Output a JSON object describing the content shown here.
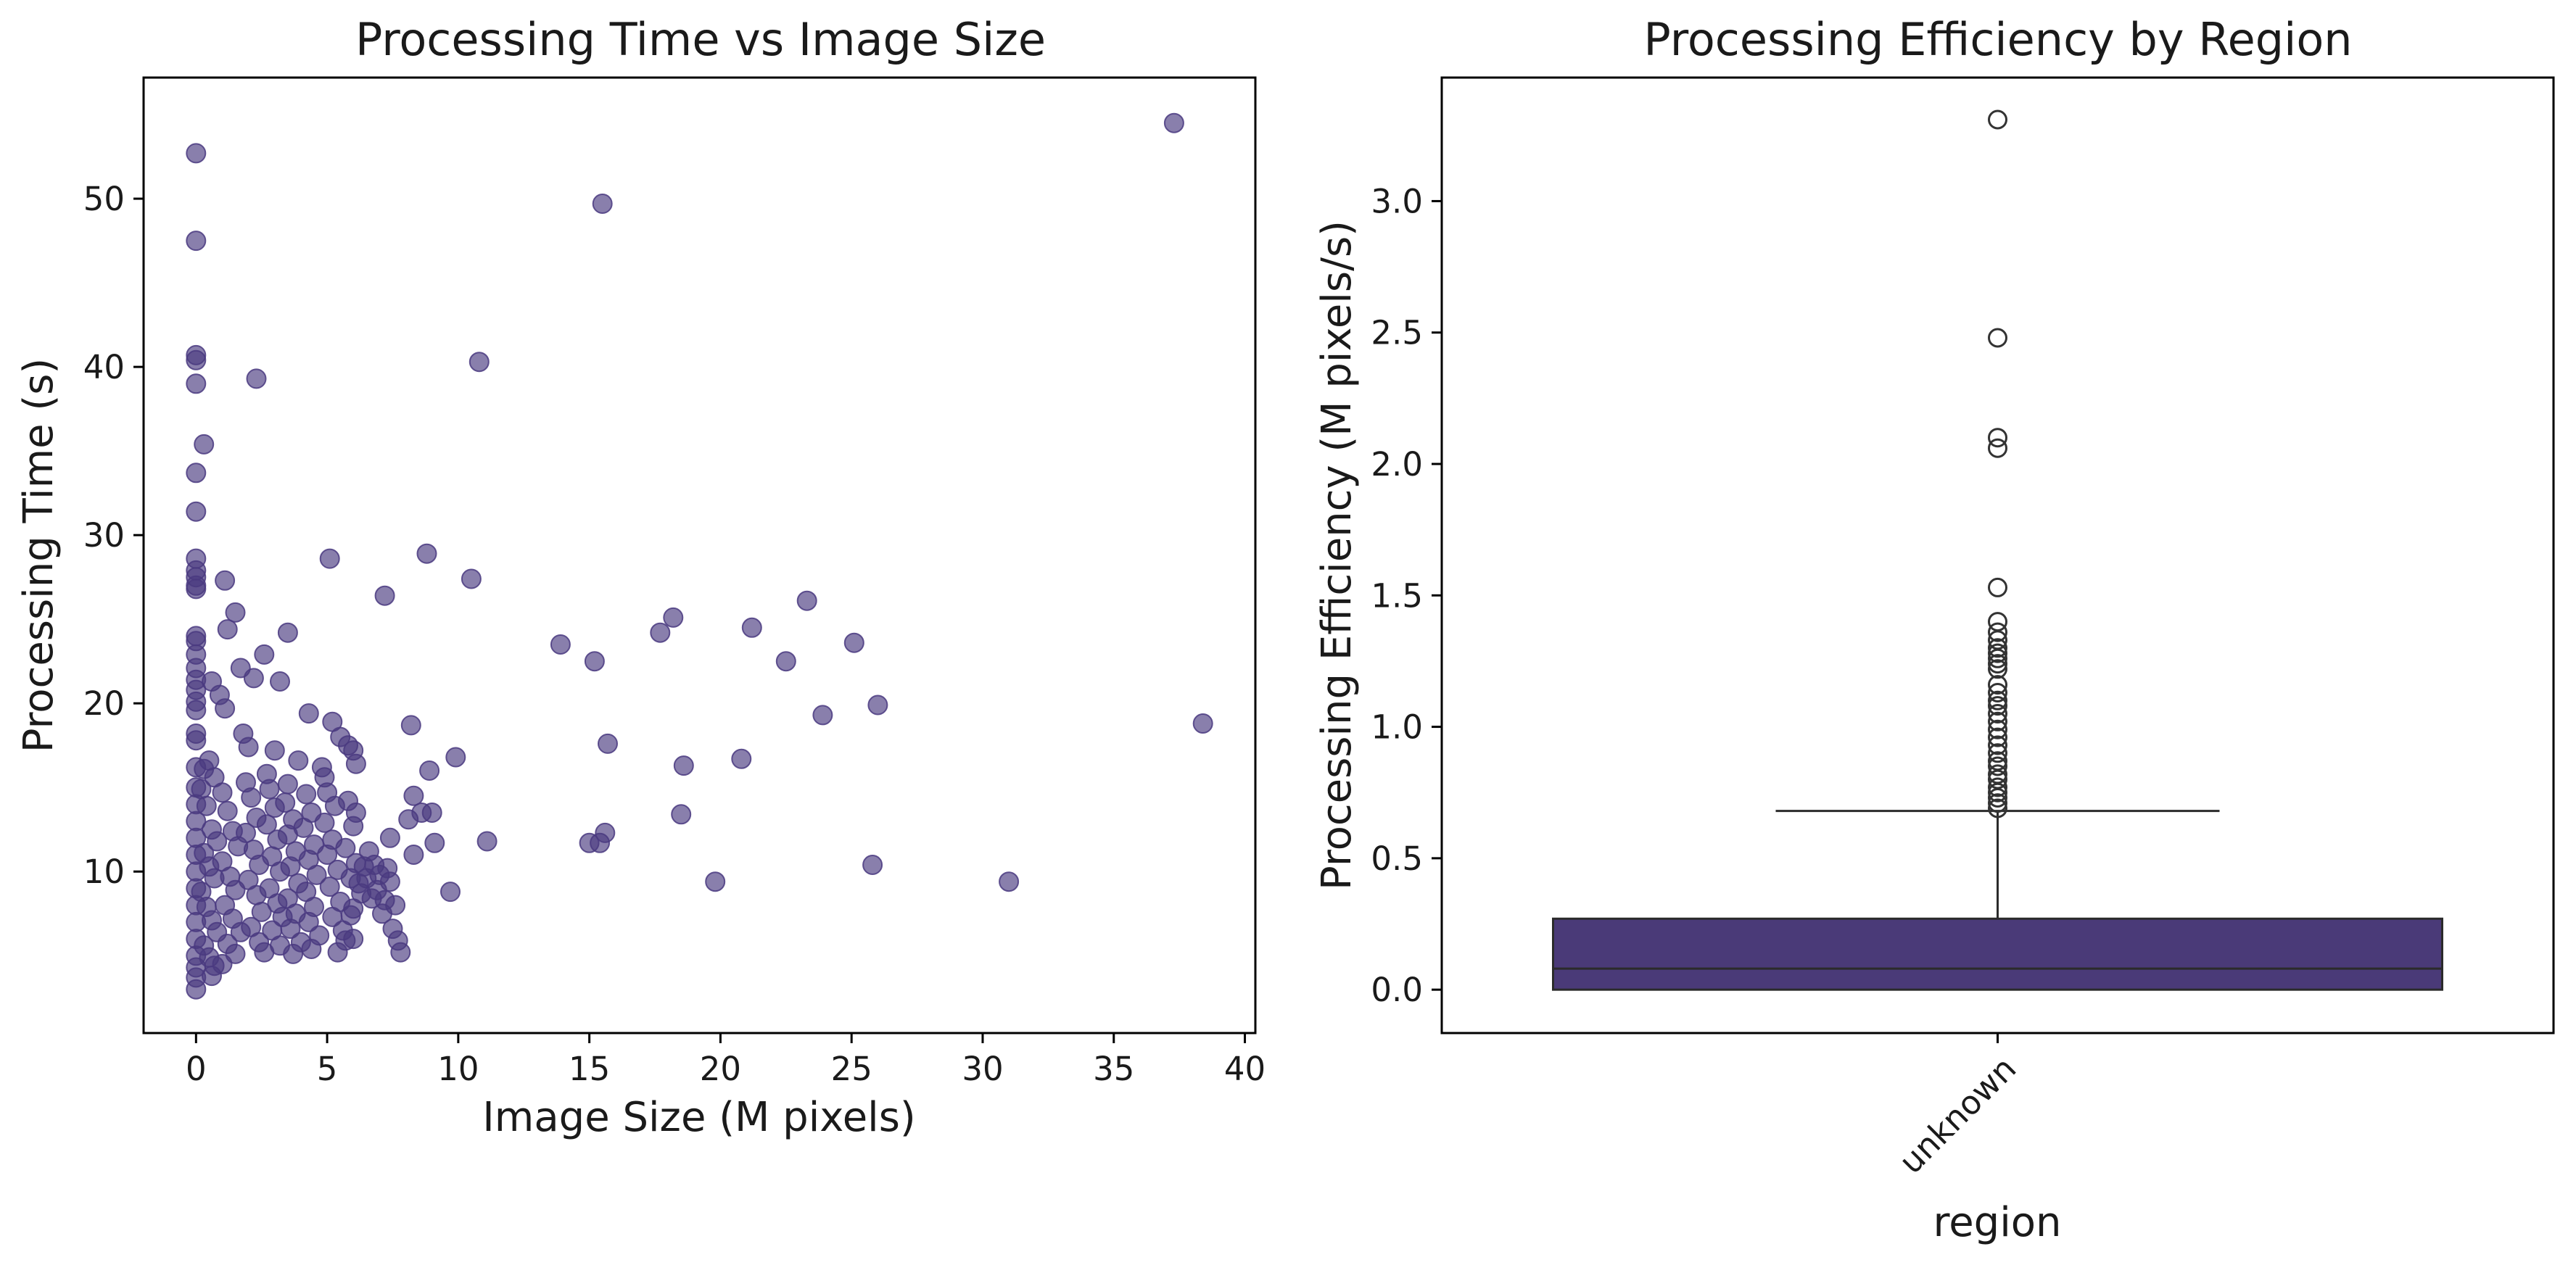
{
  "chart_data": [
    {
      "type": "scatter",
      "title": "Processing Time vs Image Size",
      "xlabel": "Image Size (M pixels)",
      "ylabel": "Processing Time (s)",
      "xlim": [
        -2,
        40.4
      ],
      "ylim": [
        0.4,
        57.2
      ],
      "xticks": [
        0,
        5,
        10,
        15,
        20,
        25,
        30,
        35,
        40
      ],
      "yticks": [
        10,
        20,
        30,
        40,
        50
      ],
      "marker_color": "#4a3a80",
      "marker_alpha": 0.65,
      "grid": false,
      "points": [
        [
          0,
          52.7
        ],
        [
          0,
          47.5
        ],
        [
          0,
          40.7
        ],
        [
          0,
          40.4
        ],
        [
          0,
          39.0
        ],
        [
          0,
          33.7
        ],
        [
          0,
          31.4
        ],
        [
          0.3,
          35.4
        ],
        [
          0,
          28.6
        ],
        [
          0,
          27.9
        ],
        [
          0,
          27.5
        ],
        [
          0,
          27.0
        ],
        [
          0,
          26.8
        ],
        [
          0,
          24.0
        ],
        [
          0,
          23.7
        ],
        [
          0,
          22.9
        ],
        [
          0,
          22.1
        ],
        [
          0,
          21.4
        ],
        [
          0,
          20.8
        ],
        [
          0,
          20.1
        ],
        [
          0,
          19.6
        ],
        [
          0,
          18.2
        ],
        [
          0,
          17.8
        ],
        [
          15.5,
          49.7
        ],
        [
          37.3,
          54.5
        ],
        [
          10.8,
          40.3
        ],
        [
          2.3,
          39.3
        ],
        [
          5.1,
          28.6
        ],
        [
          8.8,
          28.9
        ],
        [
          10.5,
          27.4
        ],
        [
          7.2,
          26.4
        ],
        [
          1.1,
          27.3
        ],
        [
          1.5,
          25.4
        ],
        [
          3.5,
          24.2
        ],
        [
          1.2,
          24.4
        ],
        [
          2.6,
          22.9
        ],
        [
          1.7,
          22.1
        ],
        [
          2.2,
          21.5
        ],
        [
          3.2,
          21.3
        ],
        [
          0.6,
          21.3
        ],
        [
          0.9,
          20.5
        ],
        [
          1.1,
          19.7
        ],
        [
          4.3,
          19.4
        ],
        [
          5.2,
          18.9
        ],
        [
          5.5,
          18.0
        ],
        [
          6.0,
          17.2
        ],
        [
          5.8,
          17.5
        ],
        [
          8.2,
          18.7
        ],
        [
          9.9,
          16.8
        ],
        [
          8.9,
          16.0
        ],
        [
          6.1,
          16.4
        ],
        [
          4.8,
          16.2
        ],
        [
          3.9,
          16.6
        ],
        [
          3.0,
          17.2
        ],
        [
          8.3,
          14.5
        ],
        [
          8.6,
          13.5
        ],
        [
          9.0,
          13.5
        ],
        [
          8.1,
          13.1
        ],
        [
          6.1,
          13.5
        ],
        [
          7.4,
          12.0
        ],
        [
          9.1,
          11.7
        ],
        [
          11.1,
          11.8
        ],
        [
          8.3,
          11.0
        ],
        [
          9.7,
          8.8
        ],
        [
          7.5,
          6.6
        ],
        [
          7.7,
          5.9
        ],
        [
          7.8,
          5.2
        ],
        [
          7.6,
          8.0
        ],
        [
          6.5,
          9.6
        ],
        [
          7.2,
          8.3
        ],
        [
          5.4,
          5.2
        ],
        [
          5.7,
          5.9
        ],
        [
          6.0,
          6.0
        ],
        [
          5.9,
          7.4
        ],
        [
          13.9,
          23.5
        ],
        [
          15.2,
          22.5
        ],
        [
          17.7,
          24.2
        ],
        [
          18.2,
          25.1
        ],
        [
          21.2,
          24.5
        ],
        [
          22.5,
          22.5
        ],
        [
          23.3,
          26.1
        ],
        [
          25.1,
          23.6
        ],
        [
          23.9,
          19.3
        ],
        [
          26.0,
          19.9
        ],
        [
          15.7,
          17.6
        ],
        [
          18.6,
          16.3
        ],
        [
          20.8,
          16.7
        ],
        [
          18.5,
          13.4
        ],
        [
          15.0,
          11.7
        ],
        [
          15.4,
          11.7
        ],
        [
          15.6,
          12.3
        ],
        [
          19.8,
          9.4
        ],
        [
          25.8,
          10.4
        ],
        [
          31.0,
          9.4
        ],
        [
          38.4,
          18.8
        ],
        [
          0,
          16.2
        ],
        [
          0,
          15.0
        ],
        [
          0,
          14.0
        ],
        [
          0,
          13.0
        ],
        [
          0,
          12.0
        ],
        [
          0,
          11.0
        ],
        [
          0,
          10.0
        ],
        [
          0,
          9.0
        ],
        [
          0,
          8.0
        ],
        [
          0,
          7.0
        ],
        [
          0,
          6.0
        ],
        [
          0,
          5.0
        ],
        [
          0,
          4.3
        ],
        [
          0,
          3.7
        ],
        [
          0,
          3.0
        ],
        [
          0.3,
          16.1
        ],
        [
          0.5,
          16.6
        ],
        [
          0.7,
          15.6
        ],
        [
          0.2,
          14.9
        ],
        [
          0.4,
          13.9
        ],
        [
          0.6,
          12.5
        ],
        [
          0.8,
          11.8
        ],
        [
          0.3,
          11.1
        ],
        [
          0.5,
          10.3
        ],
        [
          0.7,
          9.6
        ],
        [
          0.2,
          8.8
        ],
        [
          0.4,
          7.9
        ],
        [
          0.6,
          7.1
        ],
        [
          0.8,
          6.4
        ],
        [
          0.3,
          5.6
        ],
        [
          0.5,
          4.9
        ],
        [
          0.7,
          4.4
        ],
        [
          0.6,
          3.8
        ],
        [
          1.0,
          14.7
        ],
        [
          1.2,
          13.6
        ],
        [
          1.4,
          12.4
        ],
        [
          1.6,
          11.5
        ],
        [
          1.0,
          10.6
        ],
        [
          1.3,
          9.7
        ],
        [
          1.5,
          8.9
        ],
        [
          1.1,
          8.0
        ],
        [
          1.4,
          7.2
        ],
        [
          1.7,
          6.4
        ],
        [
          1.2,
          5.7
        ],
        [
          1.5,
          5.1
        ],
        [
          1.0,
          4.5
        ],
        [
          1.8,
          18.2
        ],
        [
          2.0,
          17.4
        ],
        [
          1.9,
          15.3
        ],
        [
          2.1,
          14.4
        ],
        [
          2.3,
          13.2
        ],
        [
          1.9,
          12.3
        ],
        [
          2.2,
          11.3
        ],
        [
          2.4,
          10.4
        ],
        [
          2.0,
          9.5
        ],
        [
          2.3,
          8.6
        ],
        [
          2.5,
          7.6
        ],
        [
          2.1,
          6.7
        ],
        [
          2.4,
          5.8
        ],
        [
          2.6,
          5.2
        ],
        [
          2.7,
          15.8
        ],
        [
          2.8,
          14.9
        ],
        [
          3.0,
          13.8
        ],
        [
          2.7,
          12.8
        ],
        [
          3.1,
          11.9
        ],
        [
          2.9,
          10.9
        ],
        [
          3.2,
          10.0
        ],
        [
          2.8,
          9.0
        ],
        [
          3.1,
          8.1
        ],
        [
          3.3,
          7.3
        ],
        [
          2.9,
          6.5
        ],
        [
          3.2,
          5.6
        ],
        [
          3.5,
          15.2
        ],
        [
          3.4,
          14.1
        ],
        [
          3.7,
          13.1
        ],
        [
          3.5,
          12.2
        ],
        [
          3.8,
          11.2
        ],
        [
          3.6,
          10.3
        ],
        [
          3.9,
          9.3
        ],
        [
          3.5,
          8.4
        ],
        [
          3.8,
          7.5
        ],
        [
          3.6,
          6.6
        ],
        [
          4.0,
          5.8
        ],
        [
          3.7,
          5.1
        ],
        [
          4.2,
          14.6
        ],
        [
          4.4,
          13.5
        ],
        [
          4.1,
          12.6
        ],
        [
          4.5,
          11.6
        ],
        [
          4.3,
          10.7
        ],
        [
          4.6,
          9.8
        ],
        [
          4.2,
          8.8
        ],
        [
          4.5,
          7.9
        ],
        [
          4.3,
          7.0
        ],
        [
          4.7,
          6.2
        ],
        [
          4.4,
          5.4
        ],
        [
          4.9,
          15.6
        ],
        [
          5.0,
          14.7
        ],
        [
          5.3,
          13.9
        ],
        [
          4.9,
          12.9
        ],
        [
          5.2,
          11.9
        ],
        [
          5.0,
          11.0
        ],
        [
          5.4,
          10.1
        ],
        [
          5.1,
          9.1
        ],
        [
          5.5,
          8.2
        ],
        [
          5.2,
          7.3
        ],
        [
          5.6,
          6.5
        ],
        [
          5.8,
          14.2
        ],
        [
          6.0,
          12.7
        ],
        [
          5.7,
          11.4
        ],
        [
          6.1,
          10.5
        ],
        [
          5.9,
          9.6
        ],
        [
          6.3,
          8.7
        ],
        [
          6.0,
          7.8
        ],
        [
          6.4,
          10.3
        ],
        [
          6.6,
          11.2
        ],
        [
          6.2,
          9.3
        ],
        [
          6.8,
          10.4
        ],
        [
          7.0,
          9.8
        ],
        [
          6.9,
          8.9
        ],
        [
          7.3,
          10.2
        ],
        [
          7.1,
          7.5
        ],
        [
          6.7,
          8.4
        ],
        [
          7.4,
          9.4
        ]
      ]
    },
    {
      "type": "box",
      "title": "Processing Efficiency by Region",
      "xlabel": "region",
      "ylabel": "Processing Efficiency (M pixels/s)",
      "categories": [
        "unknown"
      ],
      "ylim": [
        -0.165,
        3.47
      ],
      "yticks": [
        "0.0",
        "0.5",
        "1.0",
        "1.5",
        "2.0",
        "2.5",
        "3.0"
      ],
      "box_color": "#4a3a78",
      "grid": false,
      "box": {
        "q1": 0.0,
        "median": 0.08,
        "q3": 0.27,
        "whisker_low": 0.0,
        "whisker_high": 0.68,
        "outliers": [
          3.31,
          2.48,
          2.1,
          2.06,
          1.53,
          1.4,
          1.36,
          1.33,
          1.3,
          1.28,
          1.26,
          1.24,
          1.22,
          1.16,
          1.13,
          1.1,
          1.08,
          1.05,
          1.02,
          0.99,
          0.96,
          0.93,
          0.9,
          0.87,
          0.85,
          0.82,
          0.8,
          0.77,
          0.75,
          0.73,
          0.71,
          0.69
        ]
      }
    }
  ]
}
